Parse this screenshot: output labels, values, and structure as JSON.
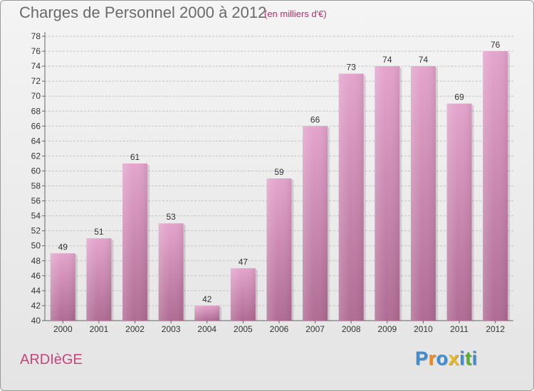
{
  "header": {
    "title": "Charges de Personnel 2000 à 2012",
    "subtitle": "(en milliers d'€)"
  },
  "footer": {
    "commune": "ARDIèGE",
    "logo_letters": [
      "P",
      "r",
      "o",
      "x",
      "i",
      "t",
      "i"
    ],
    "logo_colors": [
      "#3a8ed4",
      "#f08a1c",
      "#3a8ed4",
      "#e8b820",
      "#3a8ed4",
      "#58b030",
      "#3a8ed4"
    ]
  },
  "chart_data": {
    "type": "bar",
    "title": "Charges de Personnel 2000 à 2012",
    "subtitle": "(en milliers d'€)",
    "categories": [
      "2000",
      "2001",
      "2002",
      "2003",
      "2004",
      "2005",
      "2006",
      "2007",
      "2008",
      "2009",
      "2010",
      "2011",
      "2012"
    ],
    "values": [
      49,
      51,
      61,
      53,
      42,
      47,
      59,
      66,
      73,
      74,
      74,
      69,
      76
    ],
    "ylim": [
      40,
      78
    ],
    "yticks": [
      40,
      42,
      44,
      46,
      48,
      50,
      52,
      54,
      56,
      58,
      60,
      62,
      64,
      66,
      68,
      70,
      72,
      74,
      76,
      78
    ],
    "grid": true,
    "bar_color_top": "#e4a4cc",
    "bar_color_bottom": "#b06c94"
  }
}
